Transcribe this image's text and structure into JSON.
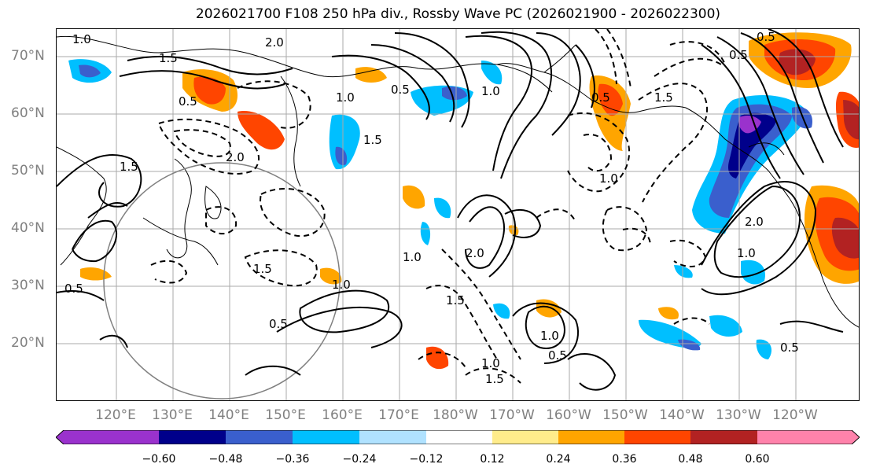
{
  "title": "2026021700 F108 250 hPa div., Rossby Wave PC (2026021900 - 2026022300)",
  "axes": {
    "lat_labels": [
      "70°N",
      "60°N",
      "50°N",
      "40°N",
      "30°N",
      "20°N"
    ],
    "lon_labels": [
      "120°E",
      "130°E",
      "140°E",
      "150°E",
      "160°E",
      "170°E",
      "180°W",
      "170°W",
      "160°W",
      "150°W",
      "140°W",
      "130°W",
      "120°W"
    ]
  },
  "colorbar": {
    "ticks": [
      "−0.60",
      "−0.48",
      "−0.36",
      "−0.24",
      "−0.12",
      "0.12",
      "0.24",
      "0.36",
      "0.48",
      "0.60"
    ],
    "colors": [
      "#9a32cd",
      "#00008b",
      "#3a5fcd",
      "#00bfff",
      "#b0e2ff",
      "#ffffff",
      "#ffec8b",
      "#ffa500",
      "#ff4500",
      "#b22222",
      "#ff82ab"
    ]
  },
  "contour_labels": [
    "1.0",
    "1.5",
    "2.0",
    "0.5",
    "1.5",
    "2.0",
    "1.0",
    "0.5",
    "1.5",
    "1.0",
    "0.5",
    "1.5",
    "1.0",
    "0.5",
    "0.5",
    "2.0",
    "1.0",
    "0.5",
    "0.5",
    "1.0",
    "1.5",
    "1.0",
    "1.5",
    "2.0",
    "1.0",
    "0.5",
    "1.5",
    "1.0",
    "0.5"
  ],
  "map_colors": {
    "land_line": "#000000",
    "grid": "#aaaaaa",
    "circle": "#808080"
  }
}
